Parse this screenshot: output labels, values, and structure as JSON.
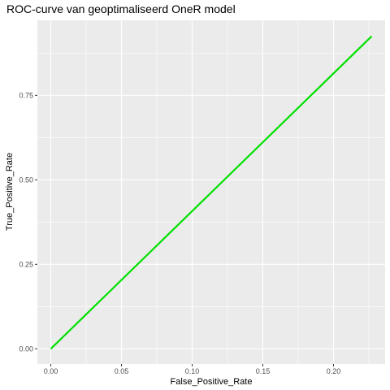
{
  "chart_data": {
    "type": "line",
    "title": "ROC-curve van geoptimaliseerd OneR model",
    "xlabel": "False_Positive_Rate",
    "ylabel": "True_Positive_Rate",
    "xlim": [
      -0.0095,
      0.2365
    ],
    "ylim": [
      -0.045,
      0.972
    ],
    "x_ticks": [
      0.0,
      0.05,
      0.1,
      0.15,
      0.2
    ],
    "x_tick_labels": [
      "0.00",
      "0.05",
      "0.10",
      "0.15",
      "0.20"
    ],
    "y_ticks": [
      0.0,
      0.25,
      0.5,
      0.75
    ],
    "y_tick_labels": [
      "0.00",
      "0.25",
      "0.50",
      "0.75"
    ],
    "grid": true,
    "series": [
      {
        "color": "#00e000",
        "x": [
          0.0,
          0.227
        ],
        "y": [
          0.0,
          0.925
        ]
      }
    ]
  }
}
